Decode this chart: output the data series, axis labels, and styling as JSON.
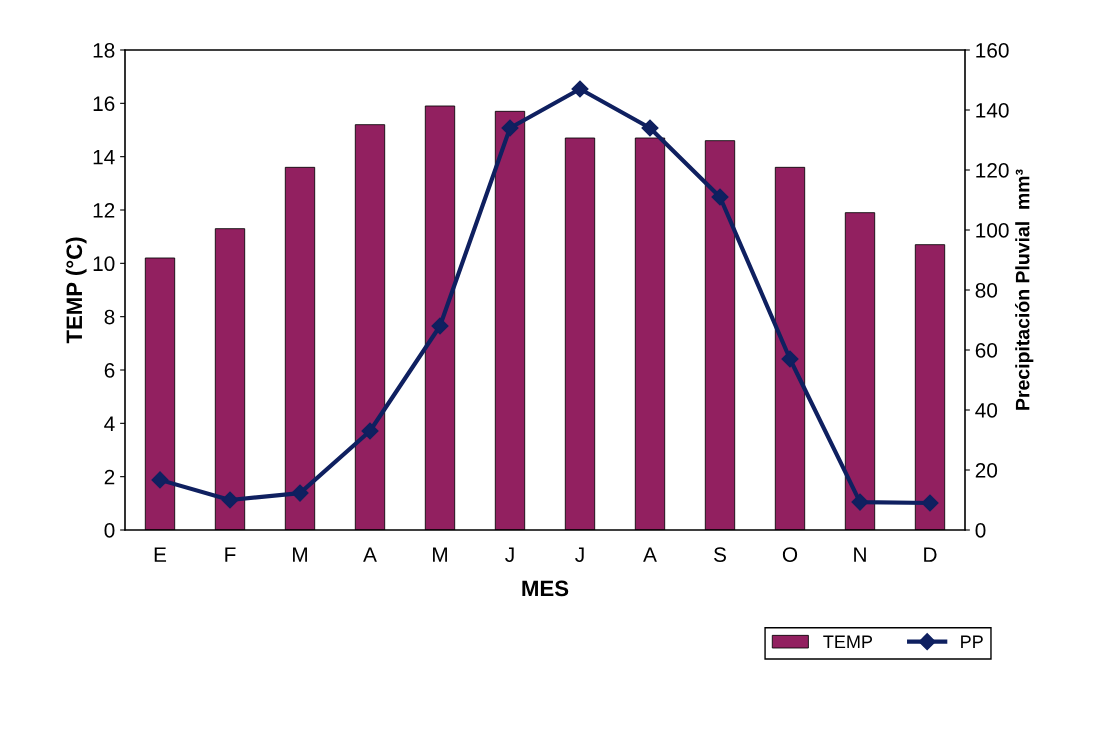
{
  "chart_data": {
    "type": "bar",
    "xlabel": "MES",
    "ylabel": "TEMP (°C)",
    "y2label": "Precipitación Pluvial  mm³",
    "categories": [
      "E",
      "F",
      "M",
      "A",
      "M",
      "J",
      "J",
      "A",
      "S",
      "O",
      "N",
      "D"
    ],
    "series": [
      {
        "name": "TEMP",
        "color": "#922060",
        "values": [
          10.2,
          11.3,
          13.6,
          15.2,
          15.9,
          15.7,
          14.7,
          14.7,
          14.6,
          13.6,
          11.9,
          10.7
        ]
      },
      {
        "name": "PP",
        "type": "line",
        "axis": "y2",
        "color": "#0f2060",
        "marker": "diamond",
        "values": [
          16.7,
          10,
          12.3,
          33,
          68,
          134,
          147,
          134,
          111,
          57,
          9.3,
          9
        ]
      }
    ],
    "ylim": [
      0,
      18
    ],
    "yticks": [
      0,
      2,
      4,
      6,
      8,
      10,
      12,
      14,
      16,
      18
    ],
    "y2lim": [
      0,
      160
    ],
    "y2ticks": [
      0,
      20,
      40,
      60,
      80,
      100,
      120,
      140,
      160
    ],
    "grid": false,
    "legend": "bottom right"
  }
}
